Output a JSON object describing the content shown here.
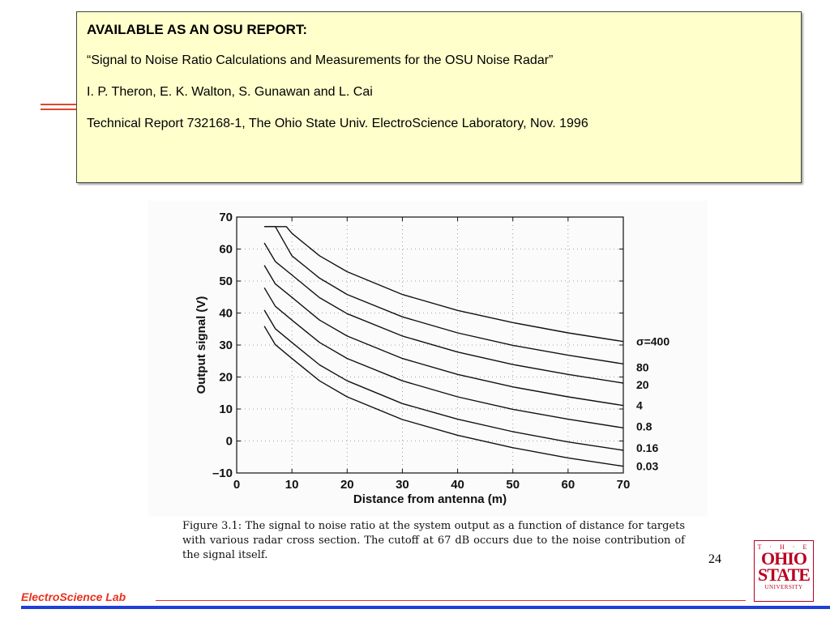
{
  "report_box": {
    "heading": "AVAILABLE AS AN OSU REPORT:",
    "title": "“Signal to Noise Ratio Calculations and Measurements for the OSU Noise Radar”",
    "authors": "I. P. Theron, E. K. Walton, S. Gunawan and L. Cai",
    "publication": "Technical Report 732168-1, The Ohio State Univ. ElectroScience Laboratory, Nov. 1996"
  },
  "chart_data": {
    "type": "line",
    "xlabel": "Distance from antenna (m)",
    "ylabel": "Output signal (V)",
    "xlim": [
      0,
      70
    ],
    "ylim": [
      -10,
      70
    ],
    "xticks": [
      "0",
      "10",
      "20",
      "30",
      "40",
      "50",
      "60",
      "70"
    ],
    "yticks": [
      "–10",
      "0",
      "10",
      "20",
      "30",
      "40",
      "50",
      "60",
      "70"
    ],
    "grid": true,
    "series": [
      {
        "name": "σ=400",
        "x": [
          5,
          6,
          7,
          8,
          9,
          10,
          15,
          20,
          30,
          40,
          50,
          60,
          70
        ],
        "y": [
          67,
          67,
          67,
          67,
          67,
          64.9,
          57.9,
          52.9,
          45.8,
          40.8,
          37.0,
          33.8,
          31.1
        ]
      },
      {
        "name": "80",
        "x": [
          5,
          6,
          7,
          10,
          15,
          20,
          30,
          40,
          50,
          60,
          70
        ],
        "y": [
          67,
          67,
          67,
          57.9,
          50.9,
          45.8,
          38.8,
          33.8,
          29.9,
          26.8,
          24.1
        ]
      },
      {
        "name": "20",
        "x": [
          5,
          7,
          10,
          15,
          20,
          30,
          40,
          50,
          60,
          70
        ],
        "y": [
          61.9,
          56.1,
          51.9,
          44.8,
          39.8,
          32.8,
          27.8,
          23.9,
          20.8,
          18.1
        ]
      },
      {
        "name": "4",
        "x": [
          5,
          7,
          10,
          15,
          20,
          30,
          40,
          50,
          60,
          70
        ],
        "y": [
          54.9,
          49.1,
          44.9,
          37.8,
          32.8,
          25.8,
          20.8,
          16.9,
          13.8,
          11.1
        ]
      },
      {
        "name": "0.8",
        "x": [
          5,
          7,
          10,
          15,
          20,
          30,
          40,
          50,
          60,
          70
        ],
        "y": [
          47.9,
          42.1,
          37.8,
          30.8,
          25.8,
          18.8,
          13.8,
          9.9,
          6.8,
          4.1
        ]
      },
      {
        "name": "0.16",
        "x": [
          5,
          7,
          10,
          15,
          20,
          30,
          40,
          50,
          60,
          70
        ],
        "y": [
          40.9,
          35.1,
          30.8,
          23.8,
          18.8,
          11.7,
          6.8,
          2.9,
          -0.3,
          -2.9
        ]
      },
      {
        "name": "0.03",
        "x": [
          5,
          7,
          10,
          15,
          20,
          30,
          40,
          50,
          60,
          70
        ],
        "y": [
          35.9,
          30.1,
          25.8,
          18.8,
          13.8,
          6.7,
          1.8,
          -2.1,
          -5.3,
          -7.9
        ]
      }
    ],
    "line_color": "#111111"
  },
  "caption": "Figure 3.1: The signal to noise ratio at the system output as a function of distance for targets with various radar cross section. The cutoff at 67 dB occurs due to the noise contribution of the signal itself.",
  "page_number": "24",
  "logo": {
    "the": "T · H · E",
    "ohio": "OHIO",
    "state": "STATE",
    "university": "UNIVERSITY"
  },
  "footer": {
    "label": "ElectroScience Lab"
  },
  "colors": {
    "box_bg": "#ffffcc",
    "accent_red": "#e8321e",
    "accent_blue": "#1f3fd8",
    "osu_scarlet": "#b8001f"
  }
}
